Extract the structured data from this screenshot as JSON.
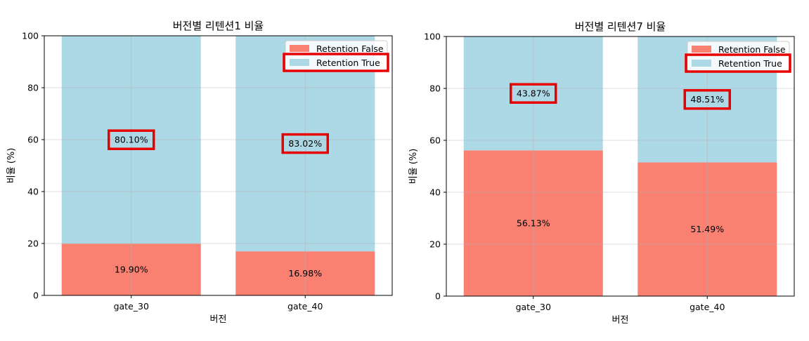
{
  "chart_data": [
    {
      "type": "bar",
      "stacked": true,
      "title": "버전별 리텐션1 비율",
      "xlabel": "버전",
      "ylabel": "비율 (%)",
      "categories": [
        "gate_30",
        "gate_40"
      ],
      "ylim": [
        0,
        100
      ],
      "yticks": [
        "0",
        "20",
        "40",
        "60",
        "80",
        "100"
      ],
      "grid": true,
      "legend_position": "top-right",
      "series": [
        {
          "name": "Retention False",
          "values": [
            19.9,
            16.98
          ],
          "labels": [
            "19.90%",
            "16.98%"
          ],
          "color": "#fa8072"
        },
        {
          "name": "Retention True",
          "values": [
            80.1,
            83.02
          ],
          "labels": [
            "80.10%",
            "83.02%"
          ],
          "color": "#add8e6"
        }
      ],
      "highlight_color": "#e80000"
    },
    {
      "type": "bar",
      "stacked": true,
      "title": "버전별 리텐션7 비율",
      "xlabel": "버전",
      "ylabel": "비율 (%)",
      "categories": [
        "gate_30",
        "gate_40"
      ],
      "ylim": [
        0,
        100
      ],
      "yticks": [
        "0",
        "20",
        "40",
        "60",
        "80",
        "100"
      ],
      "grid": true,
      "legend_position": "top-right",
      "series": [
        {
          "name": "Retention False",
          "values": [
            56.13,
            51.49
          ],
          "labels": [
            "56.13%",
            "51.49%"
          ],
          "color": "#fa8072"
        },
        {
          "name": "Retention True",
          "values": [
            43.87,
            48.51
          ],
          "labels": [
            "43.87%",
            "48.51%"
          ],
          "color": "#add8e6"
        }
      ],
      "highlight_color": "#e80000"
    }
  ]
}
